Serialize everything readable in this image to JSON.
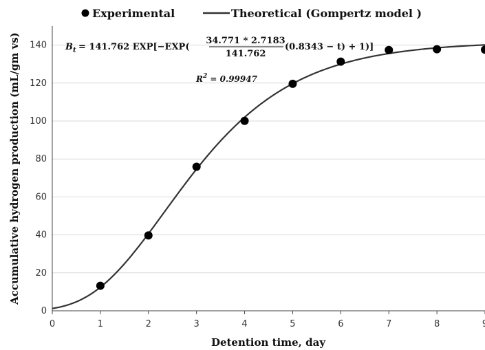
{
  "chart_data": {
    "type": "scatter",
    "legend": {
      "position": "top",
      "experimental_label": "Experimental",
      "theoretical_label": "Theoretical (Gompertz model )"
    },
    "xlabel": "Detention time, day",
    "ylabel": "Accumulative hydrogen production (mL/gm vs)",
    "xlim": [
      0,
      9
    ],
    "ylim": [
      0,
      150
    ],
    "x_ticks": [
      "0",
      "1",
      "2",
      "3",
      "4",
      "5",
      "6",
      "7",
      "8",
      "9"
    ],
    "y_ticks": [
      "0",
      "20",
      "40",
      "60",
      "80",
      "100",
      "120",
      "140"
    ],
    "grid": "horizontal",
    "series": [
      {
        "name": "Experimental",
        "kind": "points",
        "x": [
          1,
          2,
          3,
          4,
          5,
          6,
          7,
          8,
          9
        ],
        "y": [
          13.2,
          39.7,
          75.9,
          100.1,
          119.6,
          131.3,
          137.4,
          137.8,
          137.6
        ]
      },
      {
        "name": "Theoretical (Gompertz model )",
        "kind": "curve",
        "model": {
          "P": 141.762,
          "Rm": 34.771,
          "lambda": 0.8343
        }
      }
    ],
    "annotations": {
      "eq_lhs": "B",
      "eq_sub": "t",
      "eq_mid": " = 141.762 EXP[−EXP(",
      "eq_num": "34.771 * 2.7183",
      "eq_den": "141.762",
      "eq_tail": "(0.8343 − t) + 1)]",
      "r2_R": "R",
      "r2_sup": "2",
      "r2_val": " = 0.99947"
    }
  }
}
